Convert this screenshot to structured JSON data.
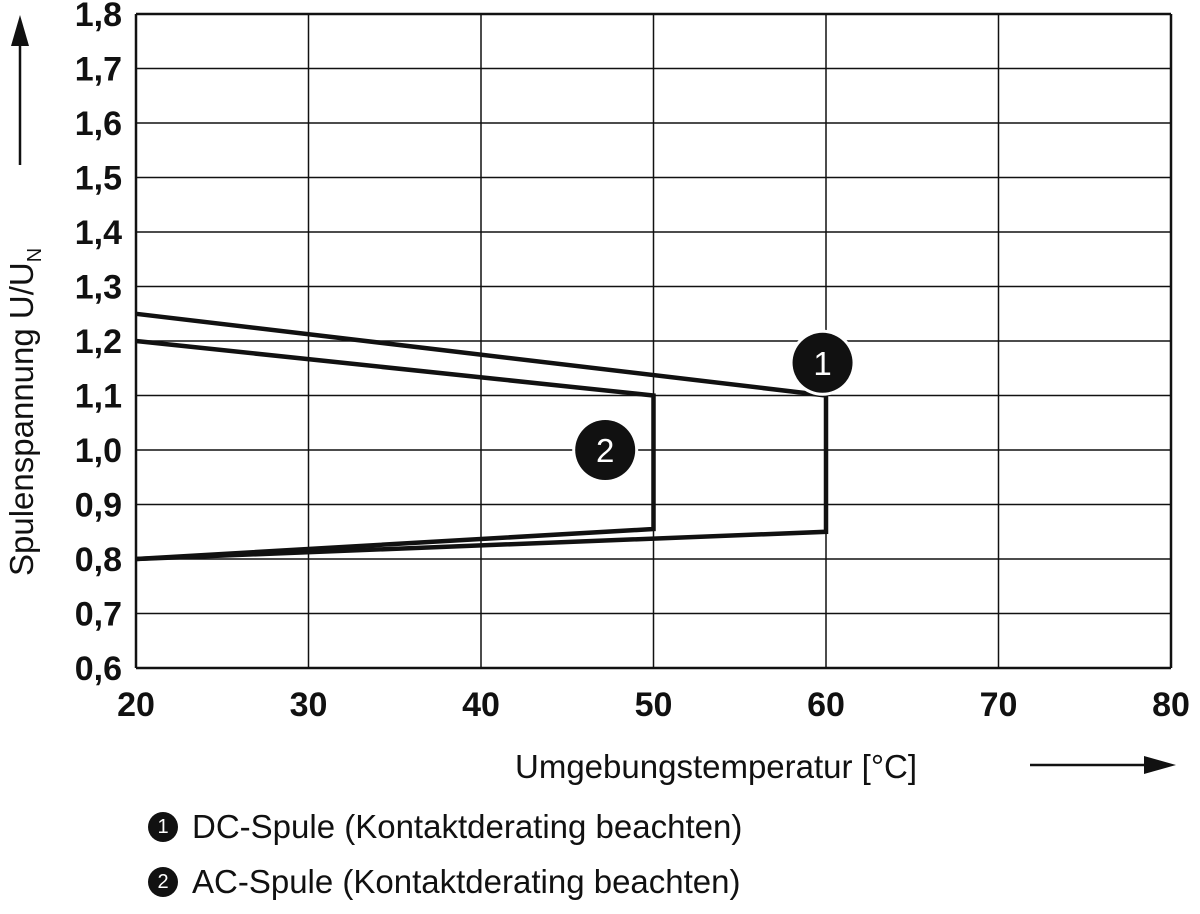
{
  "chart_data": {
    "type": "line",
    "title": "",
    "xlabel": "Umgebungstemperatur [°C]",
    "ylabel": "Spulenspannung U/U",
    "ylabel_subscript": "N",
    "xlim": [
      20,
      80
    ],
    "ylim": [
      0.6,
      1.8
    ],
    "x_ticks": [
      "20",
      "30",
      "40",
      "50",
      "60",
      "70",
      "80"
    ],
    "y_ticks": [
      "0,6",
      "0,7",
      "0,8",
      "0,9",
      "1,0",
      "1,1",
      "1,2",
      "1,3",
      "1,4",
      "1,5",
      "1,6",
      "1,7",
      "1,8"
    ],
    "grid": true,
    "series": [
      {
        "name": "1",
        "legend": "DC-Spule (Kontaktderating beachten)",
        "points": [
          [
            20,
            1.25
          ],
          [
            60,
            1.1
          ],
          [
            60,
            0.85
          ],
          [
            20,
            0.8
          ]
        ],
        "marker_label_at": [
          59.8,
          1.16
        ]
      },
      {
        "name": "2",
        "legend": "AC-Spule (Kontaktderating beachten)",
        "points": [
          [
            20,
            1.2
          ],
          [
            50,
            1.1
          ],
          [
            50,
            0.855
          ],
          [
            20,
            0.8
          ]
        ],
        "marker_label_at": [
          47.2,
          1.0
        ]
      }
    ]
  }
}
